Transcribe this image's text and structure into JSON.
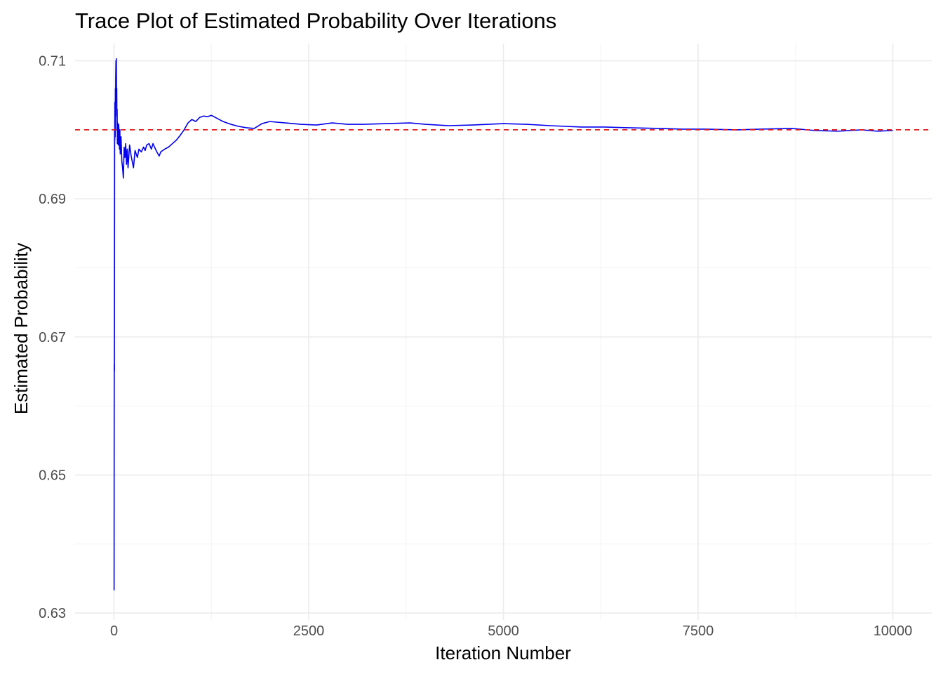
{
  "chart_data": {
    "type": "line",
    "title": "Trace Plot of Estimated Probability Over Iterations",
    "xlabel": "Iteration Number",
    "ylabel": "Estimated Probability",
    "xlim": [
      -500,
      10500
    ],
    "ylim": [
      0.629,
      0.7125
    ],
    "x_ticks": [
      0,
      2500,
      5000,
      7500,
      10000
    ],
    "x_tick_labels": [
      "0",
      "2500",
      "5000",
      "7500",
      "10000"
    ],
    "y_ticks": [
      0.63,
      0.65,
      0.67,
      0.69,
      0.71
    ],
    "y_tick_labels": [
      "0.63",
      "0.65",
      "0.67",
      "0.69",
      "0.71"
    ],
    "grid": true,
    "legend": "none",
    "reference_line": {
      "y": 0.7,
      "color": "#e41a1c",
      "style": "dashed"
    },
    "series": [
      {
        "color": "#0000ee",
        "x": [
          1,
          2,
          3,
          5,
          8,
          10,
          12,
          15,
          18,
          20,
          22,
          25,
          28,
          30,
          32,
          35,
          38,
          40,
          43,
          46,
          50,
          55,
          60,
          65,
          70,
          75,
          80,
          90,
          100,
          110,
          120,
          130,
          140,
          150,
          160,
          170,
          180,
          200,
          220,
          250,
          270,
          300,
          320,
          350,
          380,
          400,
          420,
          450,
          480,
          500,
          520,
          550,
          580,
          600,
          650,
          700,
          750,
          800,
          850,
          900,
          950,
          1000,
          1050,
          1100,
          1150,
          1200,
          1250,
          1300,
          1350,
          1400,
          1500,
          1600,
          1700,
          1800,
          1900,
          2000,
          2200,
          2400,
          2600,
          2800,
          3000,
          3200,
          3500,
          3800,
          4000,
          4300,
          4600,
          5000,
          5300,
          5600,
          6000,
          6300,
          6600,
          7000,
          7300,
          7600,
          8000,
          8300,
          8700,
          9000,
          9300,
          9600,
          9800,
          10000
        ],
        "y": [
          0.6333,
          0.652,
          0.666,
          0.665,
          0.7,
          0.6985,
          0.704,
          0.699,
          0.706,
          0.702,
          0.7075,
          0.71,
          0.705,
          0.7103,
          0.704,
          0.706,
          0.7,
          0.703,
          0.698,
          0.701,
          0.699,
          0.6978,
          0.7008,
          0.6995,
          0.6972,
          0.7,
          0.6965,
          0.699,
          0.6955,
          0.6945,
          0.693,
          0.6975,
          0.696,
          0.698,
          0.695,
          0.6972,
          0.6945,
          0.6978,
          0.6962,
          0.6945,
          0.697,
          0.696,
          0.6972,
          0.6968,
          0.6975,
          0.697,
          0.6978,
          0.698,
          0.6972,
          0.698,
          0.6975,
          0.6968,
          0.6962,
          0.6968,
          0.6972,
          0.6975,
          0.698,
          0.6985,
          0.6992,
          0.7,
          0.701,
          0.7015,
          0.7012,
          0.7018,
          0.702,
          0.7019,
          0.7021,
          0.7018,
          0.7015,
          0.7012,
          0.7008,
          0.7005,
          0.7003,
          0.7002,
          0.7009,
          0.7012,
          0.701,
          0.7008,
          0.7007,
          0.701,
          0.7008,
          0.7008,
          0.7009,
          0.701,
          0.7008,
          0.7006,
          0.7007,
          0.7009,
          0.7008,
          0.7006,
          0.7004,
          0.7004,
          0.7003,
          0.7002,
          0.7001,
          0.7001,
          0.7,
          0.7001,
          0.7002,
          0.6999,
          0.6998,
          0.7,
          0.6998,
          0.6999
        ]
      }
    ]
  }
}
